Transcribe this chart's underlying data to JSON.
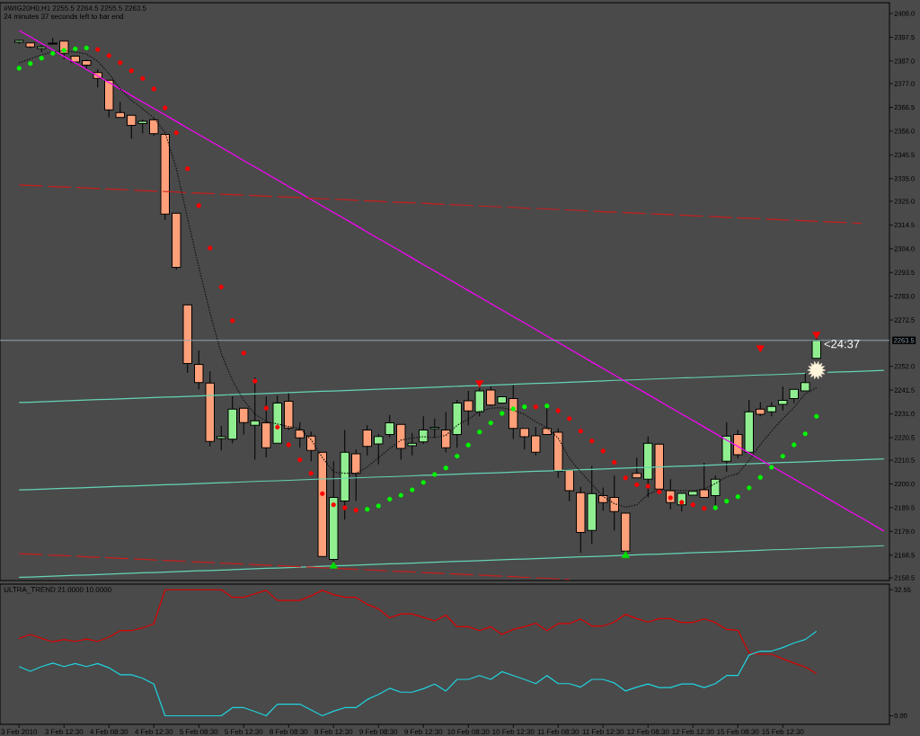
{
  "chart_data": [
    {
      "type": "candlestick",
      "title": "#WIG20H0,H1 2255.5 2264.5 2255.5 2263.5",
      "subtitle": "24 minutes 37 seconds left to bar end",
      "categories": [
        null,
        null,
        null,
        null,
        null,
        null,
        null,
        null,
        null,
        null,
        null,
        null,
        null,
        null,
        null,
        null,
        null,
        null,
        null,
        null,
        null,
        null,
        null,
        null,
        null,
        null,
        null,
        null,
        null,
        null,
        null,
        null,
        null,
        null,
        null,
        null,
        null,
        null,
        null,
        null,
        null,
        null,
        null,
        null,
        null,
        null,
        null,
        null,
        null,
        null,
        null,
        null,
        null,
        null,
        null,
        null,
        null,
        null,
        null,
        null,
        null,
        null,
        null,
        null,
        null,
        null,
        null,
        null,
        null,
        null,
        null,
        null,
        null,
        null,
        null,
        null,
        null,
        null
      ],
      "ohlc": [
        [
          2395.3,
          2396.5,
          2394.5,
          2396.1
        ],
        [
          2395.0,
          2395.0,
          2392.5,
          2393.2
        ],
        [
          2392.5,
          2394.1,
          2390.9,
          2393.3
        ],
        [
          2394.5,
          2397.3,
          2394.1,
          2394.9
        ],
        [
          2395.8,
          2395.8,
          2387.9,
          2390.4
        ],
        [
          2389.2,
          2389.2,
          2386.2,
          2386.6
        ],
        [
          2387.2,
          2387.7,
          2383.4,
          2385.2
        ],
        [
          2381.9,
          2383.4,
          2375.3,
          2379.3
        ],
        [
          2378.5,
          2378.5,
          2362.0,
          2365.4
        ],
        [
          2364.2,
          2368.9,
          2361.9,
          2362.0
        ],
        [
          2363.0,
          2363.0,
          2352.6,
          2358.6
        ],
        [
          2359.4,
          2361.1,
          2355.0,
          2360.3
        ],
        [
          2361.0,
          2361.6,
          2354.0,
          2354.9
        ],
        [
          2354.6,
          2354.6,
          2316.6,
          2319.3
        ],
        [
          2319.7,
          2319.7,
          2294.8,
          2295.8
        ],
        [
          2279.2,
          2279.2,
          2249.1,
          2253.3
        ],
        [
          2252.9,
          2259.0,
          2241.8,
          2244.8
        ],
        [
          2244.6,
          2249.8,
          2216.6,
          2218.8
        ],
        [
          2220.1,
          2225.6,
          2214.9,
          2221.0
        ],
        [
          2219.8,
          2238.8,
          2218.0,
          2233.1
        ],
        [
          2233.5,
          2233.5,
          2221.9,
          2227.1
        ],
        [
          2225.9,
          2247.1,
          2210.7,
          2227.9
        ],
        [
          2227.0,
          2238.8,
          2211.7,
          2216.0
        ],
        [
          2218.0,
          2239.1,
          2218.0,
          2235.8
        ],
        [
          2236.6,
          2240.5,
          2223.9,
          2224.7
        ],
        [
          2223.9,
          2227.2,
          2216.0,
          2220.4
        ],
        [
          2221.2,
          2223.2,
          2210.0,
          2214.8
        ],
        [
          2214.0,
          2214.0,
          2167.9,
          2167.9
        ],
        [
          2166.6,
          2210.0,
          2165.6,
          2194.1
        ],
        [
          2192.5,
          2223.9,
          2184.2,
          2214.0
        ],
        [
          2213.3,
          2215.3,
          2192.5,
          2204.7
        ],
        [
          2223.9,
          2225.9,
          2212.6,
          2216.6
        ],
        [
          2217.7,
          2222.2,
          2208.7,
          2221.0
        ],
        [
          2221.9,
          2230.5,
          2220.6,
          2227.0
        ],
        [
          2226.3,
          2226.4,
          2210.7,
          2215.7
        ],
        [
          2216.9,
          2222.6,
          2212.6,
          2218.0
        ],
        [
          2218.6,
          2229.9,
          2217.7,
          2223.9
        ],
        [
          2224.5,
          2228.9,
          2220.6,
          2225.0
        ],
        [
          2223.9,
          2231.9,
          2214.0,
          2216.0
        ],
        [
          2221.9,
          2237.2,
          2216.0,
          2235.8
        ],
        [
          2236.8,
          2241.1,
          2225.9,
          2232.3
        ],
        [
          2231.9,
          2242.4,
          2229.9,
          2241.1
        ],
        [
          2241.5,
          2243.1,
          2234.4,
          2234.9
        ],
        [
          2235.8,
          2238.6,
          2235.8,
          2238.6
        ],
        [
          2237.8,
          2243.8,
          2219.9,
          2224.6
        ],
        [
          2224.6,
          2224.6,
          2215.3,
          2220.9
        ],
        [
          2221.3,
          2225.2,
          2212.6,
          2214.0
        ],
        [
          2224.6,
          2233.9,
          2221.9,
          2221.9
        ],
        [
          2222.9,
          2224.6,
          2202.7,
          2205.6
        ],
        [
          2206.3,
          2206.3,
          2192.5,
          2197.0
        ],
        [
          2196.1,
          2198.7,
          2169.6,
          2178.6
        ],
        [
          2179.5,
          2208.0,
          2173.6,
          2195.7
        ],
        [
          2194.8,
          2198.4,
          2188.2,
          2191.8
        ],
        [
          2194.1,
          2203.7,
          2179.5,
          2187.8
        ],
        [
          2187.1,
          2187.1,
          2170.3,
          2170.3
        ],
        [
          2204.7,
          2211.6,
          2202.7,
          2202.7
        ],
        [
          2202.1,
          2221.0,
          2194.1,
          2218.0
        ],
        [
          2217.6,
          2217.6,
          2197.7,
          2197.7
        ],
        [
          2197.0,
          2202.1,
          2188.8,
          2191.8
        ],
        [
          2190.8,
          2195.8,
          2187.8,
          2195.8
        ],
        [
          2195.0,
          2196.7,
          2195.0,
          2196.7
        ],
        [
          2197.4,
          2209.4,
          2194.1,
          2194.1
        ],
        [
          2194.8,
          2203.7,
          2189.5,
          2202.1
        ],
        [
          2210.0,
          2227.2,
          2205.4,
          2221.2
        ],
        [
          2221.9,
          2223.9,
          2211.3,
          2212.9
        ],
        [
          2214.0,
          2237.2,
          2214.0,
          2231.9
        ],
        [
          2233.1,
          2236.2,
          2229.9,
          2230.8
        ],
        [
          2231.9,
          2236.2,
          2229.9,
          2234.3
        ],
        [
          2235.2,
          2243.1,
          2232.5,
          2237.0
        ],
        [
          2237.8,
          2241.8,
          2235.8,
          2241.8
        ],
        [
          2241.1,
          2249.1,
          2241.1,
          2244.8
        ],
        [
          2255.5,
          2264.5,
          2255.5,
          2263.5
        ],
        null,
        null,
        null,
        null,
        null,
        null
      ],
      "colors": [
        "#90ee90",
        "#ffa07a",
        "#90ee90",
        "#90ee90",
        "#ffa07a",
        "#ffa07a",
        "#ffa07a",
        "#ffa07a",
        "#ffa07a",
        "#ffa07a",
        "#ffa07a",
        "#90ee90",
        "#ffa07a",
        "#ffa07a",
        "#ffa07a",
        "#ffa07a",
        "#ffa07a",
        "#ffa07a",
        "#90ee90",
        "#90ee90",
        "#ffa07a",
        "#90ee90",
        "#ffa07a",
        "#90ee90",
        "#ffa07a",
        "#ffa07a",
        "#ffa07a",
        "#ffa07a",
        "#90ee90",
        "#90ee90",
        "#ffa07a",
        "#ffa07a",
        "#90ee90",
        "#90ee90",
        "#ffa07a",
        "#90ee90",
        "#90ee90",
        "#90ee90",
        "#ffa07a",
        "#90ee90",
        "#ffa07a",
        "#90ee90",
        "#ffa07a",
        "#90ee90",
        "#ffa07a",
        "#ffa07a",
        "#ffa07a",
        "#ffa07a",
        "#ffa07a",
        "#ffa07a",
        "#ffa07a",
        "#90ee90",
        "#ffa07a",
        "#ffa07a",
        "#ffa07a",
        "#ffa07a",
        "#90ee90",
        "#ffa07a",
        "#ffa07a",
        "#90ee90",
        "#90ee90",
        "#ffa07a",
        "#90ee90",
        "#90ee90",
        "#ffa07a",
        "#90ee90",
        "#ffa07a",
        "#90ee90",
        "#90ee90",
        "#90ee90",
        "#90ee90",
        "#90ee90",
        null,
        null,
        null,
        null,
        null,
        null
      ],
      "series": [
        {
          "type": "line",
          "color": "#66d3b6",
          "values": [
            2236.0,
            2236.1,
            2236.3,
            2236.5,
            2236.7,
            2236.9,
            2237.1,
            2237.3,
            2237.4,
            2237.6,
            2237.8,
            2238.0,
            2238.2,
            2238.4,
            2238.5,
            2238.7,
            2238.9,
            2239.1,
            2239.3,
            2239.5,
            2239.7,
            2239.8,
            2240.0,
            2240.2,
            2240.4,
            2240.6,
            2240.8,
            2241.0,
            2241.1,
            2241.3,
            2241.5,
            2241.7,
            2241.9,
            2242.1,
            2242.2,
            2242.4,
            2242.6,
            2242.8,
            2243.0,
            2243.2,
            2243.4,
            2243.5,
            2243.7,
            2243.9,
            2244.1,
            2244.3,
            2244.5,
            2244.6,
            2244.8,
            2245.0,
            2245.2,
            2245.4,
            2245.6,
            2245.8,
            2245.9,
            2246.1,
            2246.3,
            2246.5,
            2246.7,
            2246.9,
            2247.0,
            2247.2,
            2247.4,
            2247.6,
            2247.8,
            2248.0,
            2248.2,
            2248.3,
            2248.5,
            2248.7,
            2248.9,
            null,
            2249.3,
            2249.5,
            2249.6,
            2249.8,
            2250.0,
            2250.2
          ]
        },
        {
          "type": "line",
          "color": "#66d3b6",
          "values": [
            2197.4,
            2197.5,
            2197.7,
            2197.9,
            2198.1,
            2198.2,
            2198.4,
            2198.6,
            2198.8,
            2199.0,
            2199.1,
            2199.3,
            2199.5,
            2199.7,
            2199.8,
            2200.0,
            2200.2,
            2200.4,
            2200.6,
            2200.7,
            2200.9,
            2201.1,
            2201.3,
            2201.4,
            2201.6,
            2201.8,
            2202.0,
            2202.2,
            2202.3,
            2202.5,
            2202.7,
            2202.9,
            2203.1,
            2203.2,
            2203.4,
            2203.6,
            2203.8,
            2203.9,
            2204.1,
            2204.3,
            2204.5,
            2204.7,
            2204.8,
            2205.0,
            2205.2,
            2205.4,
            2205.6,
            2205.7,
            2205.9,
            2206.1,
            2206.3,
            2206.4,
            2206.6,
            2206.8,
            2207.0,
            2207.2,
            2207.3,
            2207.5,
            2207.7,
            2207.9,
            2208.0,
            2208.2,
            2208.4,
            2208.6,
            2208.8,
            2208.9,
            2209.1,
            2209.3,
            2209.5,
            2209.6,
            2209.8,
            2210.0,
            2210.2,
            2210.4,
            2210.5,
            2210.7,
            2210.9,
            2211.1
          ]
        },
        {
          "type": "line",
          "color": "#66d3b6",
          "values": [
            2158.7,
            2158.8,
            2159.0,
            2159.2,
            2159.4,
            2159.6,
            2159.7,
            2159.9,
            2160.1,
            2160.3,
            2160.5,
            2160.7,
            2160.8,
            2161.0,
            2161.2,
            2161.4,
            2161.6,
            2161.7,
            2161.9,
            2162.1,
            2162.3,
            2162.5,
            2162.7,
            2162.8,
            2163.0,
            2163.2,
            2163.4,
            2163.6,
            2163.8,
            2163.9,
            2164.1,
            2164.3,
            2164.5,
            2164.7,
            2164.8,
            2165.0,
            2165.2,
            2165.4,
            2165.6,
            2165.8,
            2165.9,
            2166.1,
            2166.3,
            2166.5,
            2166.7,
            2166.8,
            2167.0,
            2167.2,
            2167.4,
            2167.6,
            2167.8,
            2167.9,
            2168.1,
            2168.3,
            2168.5,
            2168.7,
            2168.9,
            2169.0,
            2169.2,
            2169.4,
            2169.6,
            2169.8,
            2169.9,
            2170.1,
            2170.3,
            2170.5,
            2170.7,
            2170.9,
            2171.0,
            2171.2,
            2171.4,
            2171.6,
            2171.8,
            2171.9,
            2172.1,
            2172.3,
            2172.5,
            2172.7
          ]
        },
        {
          "type": "line",
          "color": "#ff00ff",
          "values": [
            2400.5,
            2397.7,
            2394.8,
            2391.9,
            2389.0,
            2386.2,
            2383.3,
            2380.4,
            2377.5,
            2374.7,
            2371.8,
            2368.9,
            2366.0,
            2363.2,
            2360.3,
            2357.4,
            2354.5,
            2351.7,
            2348.8,
            2345.9,
            2343.0,
            2340.2,
            2337.3,
            2334.4,
            2331.5,
            2328.7,
            2325.8,
            2322.9,
            2320.0,
            2317.2,
            2314.3,
            2311.4,
            2308.5,
            2305.7,
            2302.8,
            2299.9,
            2297.0,
            2294.2,
            2291.3,
            2288.4,
            2285.5,
            2282.7,
            2279.8,
            2276.9,
            2274.0,
            2271.2,
            2268.3,
            2265.4,
            2262.6,
            2259.7,
            2256.8,
            2253.9,
            2251.1,
            2248.2,
            2245.3,
            2242.4,
            2239.6,
            2236.7,
            2233.8,
            2230.9,
            2228.1,
            2225.2,
            2222.3,
            2219.4,
            2216.6,
            2213.7,
            2210.8,
            2207.9,
            2205.1,
            2202.2,
            2199.3,
            2196.5,
            2193.6,
            2190.7,
            2187.8,
            2185.0,
            2182.1,
            2179.2
          ]
        },
        {
          "type": "line",
          "color": "#c81e1e",
          "line_style": "dashed",
          "values": [
            2332.2,
            2332.0,
            2331.8,
            2331.5,
            2331.3,
            2331.1,
            2330.9,
            2330.6,
            2330.4,
            2330.2,
            2330.0,
            2329.7,
            2329.5,
            2329.3,
            2329.1,
            2328.8,
            2328.6,
            2328.4,
            2328.1,
            2327.9,
            2327.7,
            2327.5,
            2327.2,
            2327.0,
            2326.8,
            2326.6,
            2326.3,
            2326.1,
            2325.9,
            2325.7,
            2325.4,
            2325.2,
            2325.0,
            2324.7,
            2324.5,
            2324.3,
            2324.1,
            2323.8,
            2323.6,
            2323.4,
            2323.2,
            2322.9,
            2322.7,
            2322.5,
            2322.3,
            2322.0,
            2321.8,
            2321.6,
            2321.3,
            2321.1,
            2320.9,
            2320.7,
            2320.4,
            2320.2,
            2320.0,
            2319.8,
            2319.5,
            2319.3,
            2319.1,
            2318.9,
            2318.6,
            2318.4,
            2318.2,
            2317.9,
            2317.7,
            2317.5,
            2317.3,
            2317.0,
            2316.8,
            2316.6,
            2316.4,
            2316.1,
            2315.9,
            2315.7,
            2315.5,
            2315.2,
            null,
            null
          ]
        },
        {
          "type": "line",
          "color": "#c81e1e",
          "line_style": "dashed",
          "values": [
            2169.2,
            2169.0,
            2168.8,
            2168.5,
            2168.3,
            2168.1,
            2167.8,
            2167.6,
            2167.4,
            2167.1,
            2166.9,
            2166.7,
            2166.4,
            2166.2,
            2166.0,
            2165.7,
            2165.5,
            2165.3,
            2165.0,
            2164.8,
            2164.6,
            2164.3,
            2164.1,
            2163.9,
            2163.6,
            2163.4,
            2163.2,
            2162.9,
            2162.7,
            2162.5,
            2162.2,
            2162.0,
            2161.8,
            2161.5,
            2161.3,
            2161.1,
            2160.8,
            2160.6,
            2160.4,
            2160.1,
            2159.9,
            2159.7,
            2159.4,
            2159.2,
            2159.0,
            2158.7,
            2158.5,
            2158.3,
            2158.0,
            2157.8,
            null,
            null,
            null,
            null,
            null,
            null,
            null,
            null,
            null,
            null,
            null,
            null,
            null,
            null,
            null,
            null,
            null,
            null,
            null,
            null,
            null,
            null,
            null,
            null,
            null,
            null,
            null,
            null
          ]
        },
        {
          "type": "line",
          "color": "#111111",
          "line_style": "dotted",
          "values": [
            2386.2,
            2388.0,
            2389.8,
            2391.0,
            2391.6,
            2391.0,
            2390.1,
            2386.9,
            2381.5,
            2374.7,
            2369.6,
            2365.9,
            2361.9,
            2355.4,
            2339.5,
            2317.4,
            2296.0,
            2275.7,
            2257.7,
            2245.7,
            2237.0,
            2230.9,
            2227.7,
            2226.5,
            2225.4,
            2224.5,
            2219.6,
            2211.7,
            2205.3,
            2204.7,
            2204.7,
            2207.5,
            2211.6,
            2215.7,
            2219.4,
            2220.3,
            2220.9,
            2220.5,
            2221.5,
            2225.9,
            2228.7,
            2232.0,
            2233.5,
            2233.7,
            2232.6,
            2230.8,
            2227.5,
            2224.9,
            2220.3,
            2211.3,
            2205.3,
            2199.9,
            2194.5,
            2191.3,
            2189.7,
            2190.8,
            2195.4,
            2197.4,
            2197.2,
            2197.1,
            2197.0,
            2197.7,
            2200.2,
            2203.2,
            2204.5,
            2210.5,
            2217.4,
            2223.4,
            2228.9,
            2233.8,
            2239.9,
            2242.5,
            null,
            null,
            null,
            null,
            null,
            null
          ]
        },
        {
          "type": "scatter",
          "color": "#ff0000",
          "marker": "circle",
          "values": [
            null,
            null,
            null,
            null,
            null,
            null,
            null,
            2392.1,
            2389.4,
            2386.3,
            2382.7,
            2379.3,
            2374.7,
            2366.3,
            2355.3,
            2339.4,
            2323.1,
            2304.3,
            2287.1,
            2272.2,
            2257.9,
            2245.5,
            2233.5,
            2225.1,
            2217.3,
            2210.7,
            2204.7,
            2195.7,
            2190.8,
            2189.5,
            2188.4,
            null,
            null,
            null,
            null,
            null,
            null,
            null,
            null,
            null,
            null,
            null,
            null,
            null,
            null,
            null,
            2234.1,
            null,
            2232.4,
            2228.9,
            2223.4,
            2219.0,
            2214.6,
            2209.6,
            2202.7,
            2199.7,
            2199.0,
            2196.5,
            2193.9,
            2191.9,
            2190.8,
            2189.2,
            null,
            null,
            null,
            null,
            null,
            null,
            null,
            null,
            null,
            null,
            null,
            null,
            null,
            null,
            null,
            null
          ]
        },
        {
          "type": "scatter",
          "color": "#00ff00",
          "marker": "circle",
          "values": [
            2383.8,
            2385.9,
            2388.3,
            2390.4,
            2391.8,
            2392.4,
            2392.8,
            null,
            null,
            null,
            null,
            null,
            null,
            null,
            null,
            null,
            null,
            null,
            null,
            null,
            null,
            null,
            null,
            null,
            null,
            null,
            null,
            null,
            null,
            null,
            null,
            2188.8,
            2190.3,
            2193.3,
            2195.0,
            2197.4,
            2200.7,
            2204.2,
            2207.1,
            2212.3,
            2217.2,
            2223.0,
            2227.0,
            2231.2,
            2233.2,
            2234.1,
            null,
            2234.5,
            null,
            null,
            null,
            null,
            null,
            null,
            null,
            null,
            null,
            null,
            null,
            null,
            null,
            null,
            2189.5,
            2192.4,
            2194.4,
            2198.3,
            2202.9,
            2207.4,
            2212.3,
            2217.3,
            2222.2,
            2229.9,
            null,
            null,
            null,
            null,
            null,
            null
          ]
        },
        {
          "type": "scatter",
          "color": "#ff0000",
          "marker": "triangle",
          "values": [
            null,
            null,
            null,
            null,
            null,
            null,
            null,
            null,
            null,
            null,
            null,
            null,
            null,
            null,
            null,
            null,
            null,
            null,
            null,
            null,
            null,
            null,
            null,
            null,
            null,
            null,
            null,
            null,
            null,
            null,
            null,
            null,
            null,
            null,
            null,
            null,
            null,
            null,
            null,
            null,
            null,
            2244.7,
            null,
            null,
            null,
            null,
            null,
            null,
            null,
            null,
            null,
            null,
            null,
            null,
            null,
            null,
            null,
            null,
            null,
            null,
            null,
            null,
            null,
            null,
            null,
            null,
            2260.2,
            null,
            null,
            null,
            null,
            2266.2,
            null,
            null,
            null,
            null,
            null,
            null
          ]
        },
        {
          "type": "scatter",
          "color": "#00e000",
          "marker": "triangle",
          "values": [
            null,
            null,
            null,
            null,
            null,
            null,
            null,
            null,
            null,
            null,
            null,
            null,
            null,
            null,
            null,
            null,
            null,
            null,
            null,
            null,
            null,
            null,
            null,
            null,
            null,
            null,
            null,
            null,
            2163.7,
            null,
            null,
            null,
            null,
            null,
            null,
            null,
            null,
            null,
            null,
            null,
            null,
            null,
            null,
            null,
            null,
            null,
            null,
            null,
            null,
            null,
            null,
            null,
            null,
            null,
            2168.3,
            null,
            null,
            null,
            null,
            null,
            null,
            null,
            null,
            null,
            null,
            null,
            null,
            null,
            null,
            null,
            null,
            null,
            null,
            null,
            null,
            null,
            null,
            null
          ]
        },
        {
          "type": "scatter",
          "color": "#fff5dc",
          "marker": "star",
          "values": [
            null,
            null,
            null,
            null,
            null,
            null,
            null,
            null,
            null,
            null,
            null,
            null,
            null,
            null,
            null,
            null,
            null,
            null,
            null,
            null,
            null,
            null,
            null,
            null,
            null,
            null,
            null,
            null,
            null,
            null,
            null,
            null,
            null,
            null,
            null,
            null,
            null,
            null,
            null,
            null,
            null,
            null,
            null,
            null,
            null,
            null,
            null,
            null,
            null,
            null,
            null,
            null,
            null,
            null,
            null,
            null,
            null,
            null,
            null,
            null,
            null,
            null,
            null,
            null,
            null,
            null,
            null,
            null,
            null,
            null,
            null,
            2250.3,
            null,
            null,
            null,
            null,
            null,
            null
          ]
        }
      ],
      "ref_lines": [
        {
          "axis": "y",
          "value": 2263.5,
          "label": "2263.5",
          "color": "#8fa3b5"
        }
      ],
      "annotations": [
        "<24:37"
      ],
      "ylim": [
        2157.3,
        2412.8
      ],
      "yticks": [
        {
          "value": 2408,
          "label": "2408.0"
        },
        {
          "value": 2397.5,
          "label": "2397.5"
        },
        {
          "value": 2387,
          "label": "2387.0"
        },
        {
          "value": 2377,
          "label": "2377.0"
        },
        {
          "value": 2366.5,
          "label": "2366.5"
        },
        {
          "value": 2356,
          "label": "2356.0"
        },
        {
          "value": 2345.5,
          "label": "2345.5"
        },
        {
          "value": 2335,
          "label": "2335.0"
        },
        {
          "value": 2325,
          "label": "2325.0"
        },
        {
          "value": 2314.5,
          "label": "2314.5"
        },
        {
          "value": 2304,
          "label": "2304.0"
        },
        {
          "value": 2293.5,
          "label": "2293.5"
        },
        {
          "value": 2283,
          "label": "2283.0"
        },
        {
          "value": 2272.5,
          "label": "2272.5"
        },
        {
          "value": 2252,
          "label": "2252.0"
        },
        {
          "value": 2241.5,
          "label": "2241.5"
        },
        {
          "value": 2231,
          "label": "2231.0"
        },
        {
          "value": 2220.5,
          "label": "2220.5"
        },
        {
          "value": 2210.5,
          "label": "2210.5"
        },
        {
          "value": 2200,
          "label": "2200.0"
        },
        {
          "value": 2189.5,
          "label": "2189.5"
        },
        {
          "value": 2179,
          "label": "2179.0"
        },
        {
          "value": 2168.5,
          "label": "2168.5"
        },
        {
          "value": 2158.5,
          "label": "2158.5"
        }
      ],
      "tick_labels": "y"
    },
    {
      "type": "line",
      "title": "ULTRA_TREND 21.0000 10.0000",
      "categories": [
        "3 Feb 2010",
        null,
        null,
        null,
        "3 Feb 12:30",
        null,
        null,
        null,
        "4 Feb 08:30",
        null,
        null,
        null,
        "4 Feb 12:30",
        null,
        null,
        null,
        "5 Feb 08:30",
        null,
        null,
        null,
        "5 Feb 12:30",
        null,
        null,
        null,
        "8 Feb 08:30",
        null,
        null,
        null,
        "8 Feb 12:30",
        null,
        null,
        null,
        "9 Feb 08:30",
        null,
        null,
        null,
        "9 Feb 12:30",
        null,
        null,
        null,
        "10 Feb 08:30",
        null,
        null,
        null,
        "10 Feb 12:30",
        null,
        null,
        null,
        "11 Feb 08:30",
        null,
        null,
        null,
        "11 Feb 12:30",
        null,
        null,
        null,
        "12 Feb 08:30",
        null,
        null,
        null,
        "12 Feb 12:30",
        null,
        null,
        null,
        "15 Feb 08:30",
        null,
        null,
        null,
        "15 Feb 12:30",
        null,
        null,
        null,
        null,
        null,
        null,
        null,
        null,
        null
      ],
      "series": [
        {
          "color": "#dd0000",
          "values": [
            20.0,
            21.0,
            20.0,
            19.1,
            19.7,
            19.2,
            19.8,
            19.2,
            20.3,
            22.0,
            22.0,
            22.7,
            23.8,
            32.55,
            32.55,
            32.55,
            32.55,
            32.55,
            32.55,
            30.6,
            30.6,
            31.5,
            32.4,
            29.8,
            29.8,
            29.8,
            31.0,
            32.4,
            31.3,
            30.6,
            30.6,
            28.8,
            27.6,
            25.3,
            26.3,
            26.3,
            25.4,
            24.5,
            26.0,
            23.0,
            23.0,
            22.0,
            23.0,
            21.0,
            22.3,
            23.0,
            23.9,
            22.0,
            23.8,
            23.8,
            25.0,
            23.2,
            23.2,
            24.2,
            26.2,
            25.1,
            24.2,
            25.1,
            25.1,
            24.1,
            24.1,
            25.0,
            24.1,
            22.3,
            22.1,
            16.2,
            15.9,
            15.9,
            14.7,
            13.6,
            12.6,
            10.9,
            null,
            null,
            null,
            null,
            null,
            null
          ]
        },
        {
          "color": "#20d4e0",
          "values": [
            12.7,
            11.5,
            12.7,
            13.6,
            12.7,
            13.5,
            12.7,
            13.5,
            12.4,
            10.6,
            10.6,
            9.7,
            8.2,
            0,
            0,
            0,
            0,
            0,
            0,
            2.1,
            2.1,
            1.1,
            0,
            3.0,
            3.0,
            3.0,
            1.5,
            0,
            1.2,
            2.1,
            2.1,
            4.2,
            5.5,
            7.1,
            6.1,
            6.1,
            7.0,
            8.2,
            6.4,
            9.4,
            9.4,
            10.4,
            9.4,
            11.4,
            10.4,
            9.4,
            8.3,
            10.4,
            8.3,
            8.3,
            7.4,
            9.4,
            9.4,
            8.5,
            6.4,
            7.4,
            8.2,
            7.3,
            7.3,
            8.2,
            8.2,
            7.3,
            8.3,
            10.4,
            10.4,
            15.7,
            16.7,
            16.7,
            17.6,
            18.8,
            19.7,
            21.8,
            null,
            null,
            null,
            null,
            null,
            null
          ]
        }
      ],
      "ylim": [
        -2.2,
        34.0
      ],
      "yticks": [
        32.55,
        {
          "value": 0,
          "label": "0.00"
        }
      ]
    }
  ]
}
